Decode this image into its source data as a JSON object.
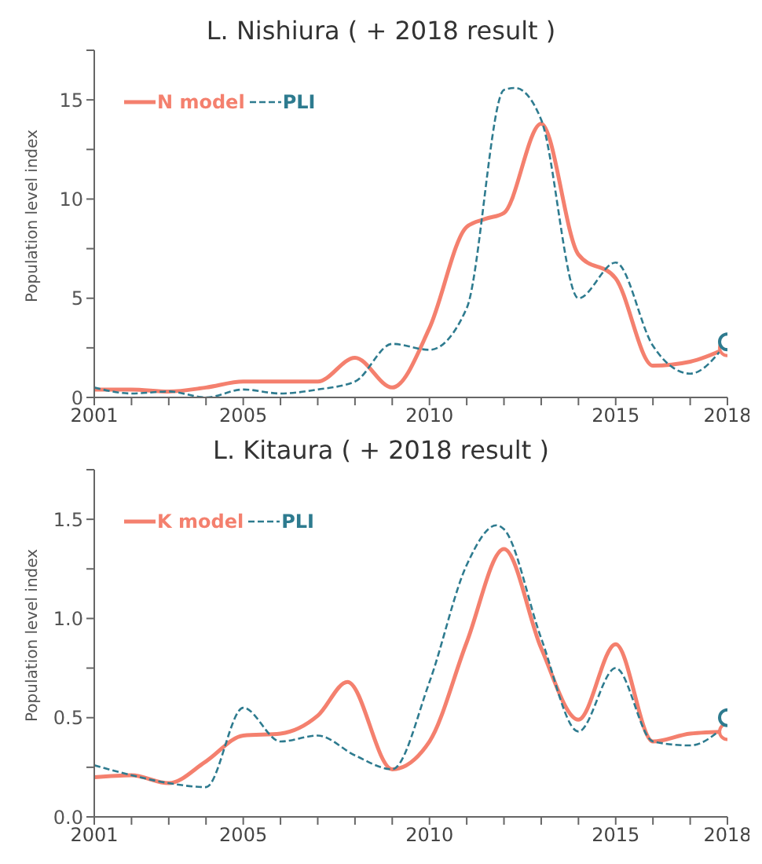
{
  "chart_data": [
    {
      "type": "line",
      "title": "L. Nishiura ( + 2018 result )",
      "ylabel": "Population level index",
      "legend": "top left",
      "grid": false,
      "xlim": [
        2001,
        2018
      ],
      "xticks": [
        2001,
        {
          "value": 2002,
          "label": null
        },
        {
          "value": 2003,
          "label": null
        },
        {
          "value": 2004,
          "label": null
        },
        2005,
        {
          "value": 2006,
          "label": null
        },
        {
          "value": 2007,
          "label": null
        },
        {
          "value": 2008,
          "label": null
        },
        {
          "value": 2009,
          "label": null
        },
        2010,
        {
          "value": 2011,
          "label": null
        },
        {
          "value": 2012,
          "label": null
        },
        {
          "value": 2013,
          "label": null
        },
        {
          "value": 2014,
          "label": null
        },
        2015,
        {
          "value": 2016,
          "label": null
        },
        {
          "value": 2017,
          "label": null
        },
        2018
      ],
      "ylim": [
        0,
        17.5
      ],
      "yticks": [
        0,
        {
          "value": 2.5,
          "label": null
        },
        5,
        {
          "value": 7.5,
          "label": null
        },
        10,
        {
          "value": 12.5,
          "label": null
        },
        15,
        {
          "value": 17.5,
          "label": null
        }
      ],
      "series": [
        {
          "name": "N model",
          "color": "#f4806e",
          "line_style": "solid",
          "x": [
            2001,
            2002,
            2003,
            2004,
            2005,
            2006,
            2007,
            2008,
            2009,
            2010,
            2011,
            2011.5,
            2012,
            2013,
            2014,
            2015,
            2016,
            2017,
            2018
          ],
          "values": [
            0.4,
            0.4,
            0.3,
            0.5,
            0.8,
            0.8,
            0.8,
            2.0,
            0.5,
            3.5,
            8.6,
            9.0,
            9.3,
            13.8,
            7.2,
            6.0,
            1.6,
            1.8,
            2.5
          ]
        },
        {
          "name": "PLI",
          "color": "#2e7b8f",
          "line_style": "dashed",
          "x": [
            2001,
            2002,
            2003,
            2004,
            2005,
            2006,
            2007,
            2008,
            2009,
            2010,
            2011,
            2012,
            2012.3,
            2013,
            2014,
            2015,
            2016,
            2017,
            2018
          ],
          "values": [
            0.5,
            0.2,
            0.3,
            0.0,
            0.4,
            0.2,
            0.4,
            0.8,
            2.7,
            2.4,
            4.5,
            15.5,
            15.6,
            14.0,
            5.0,
            6.8,
            2.6,
            1.2,
            2.8
          ]
        },
        {
          "type": "scatter",
          "marker": "circle",
          "color": "#f4806e",
          "x": [
            2018
          ],
          "values": [
            2.5
          ]
        },
        {
          "type": "scatter",
          "marker": "circle",
          "color": "#2e7b8f",
          "x": [
            2018
          ],
          "values": [
            2.8
          ]
        }
      ]
    },
    {
      "type": "line",
      "title": "L. Kitaura ( + 2018 result )",
      "ylabel": "Population level index",
      "legend": "top left",
      "grid": false,
      "xlim": [
        2001,
        2018
      ],
      "xticks": [
        2001,
        {
          "value": 2002,
          "label": null
        },
        {
          "value": 2003,
          "label": null
        },
        {
          "value": 2004,
          "label": null
        },
        2005,
        {
          "value": 2006,
          "label": null
        },
        {
          "value": 2007,
          "label": null
        },
        {
          "value": 2008,
          "label": null
        },
        {
          "value": 2009,
          "label": null
        },
        2010,
        {
          "value": 2011,
          "label": null
        },
        {
          "value": 2012,
          "label": null
        },
        {
          "value": 2013,
          "label": null
        },
        {
          "value": 2014,
          "label": null
        },
        2015,
        {
          "value": 2016,
          "label": null
        },
        {
          "value": 2017,
          "label": null
        },
        2018
      ],
      "ylim": [
        0,
        1.75
      ],
      "yticks": [
        {
          "value": 0,
          "label": "0.0"
        },
        {
          "value": 0.25,
          "label": null
        },
        0.5,
        {
          "value": 0.75,
          "label": null
        },
        {
          "value": 1,
          "label": "1.0"
        },
        {
          "value": 1.25,
          "label": null
        },
        1.5,
        {
          "value": 1.75,
          "label": null
        }
      ],
      "series": [
        {
          "name": "K model",
          "color": "#f4806e",
          "line_style": "solid",
          "x": [
            2001,
            2002,
            2003,
            2004,
            2005,
            2006,
            2007,
            2007.8,
            2009,
            2010,
            2011,
            2012,
            2013,
            2014,
            2015,
            2016,
            2017,
            2018
          ],
          "values": [
            0.2,
            0.21,
            0.17,
            0.28,
            0.41,
            0.42,
            0.51,
            0.68,
            0.24,
            0.38,
            0.88,
            1.35,
            0.85,
            0.49,
            0.87,
            0.38,
            0.42,
            0.43
          ]
        },
        {
          "name": "PLI",
          "color": "#2e7b8f",
          "line_style": "dashed",
          "x": [
            2001,
            2002,
            2003,
            2004,
            2005,
            2006,
            2007,
            2008,
            2009,
            2010,
            2011,
            2011.8,
            2012,
            2013,
            2014,
            2015,
            2016,
            2017,
            2018
          ],
          "values": [
            0.26,
            0.21,
            0.17,
            0.15,
            0.55,
            0.38,
            0.41,
            0.31,
            0.24,
            0.68,
            1.27,
            1.47,
            1.45,
            0.9,
            0.43,
            0.75,
            0.38,
            0.36,
            0.47
          ]
        },
        {
          "type": "scatter",
          "marker": "circle",
          "color": "#f4806e",
          "x": [
            2018
          ],
          "values": [
            0.43
          ]
        },
        {
          "type": "scatter",
          "marker": "circle",
          "color": "#2e7b8f",
          "x": [
            2018
          ],
          "values": [
            0.5
          ]
        }
      ]
    }
  ]
}
